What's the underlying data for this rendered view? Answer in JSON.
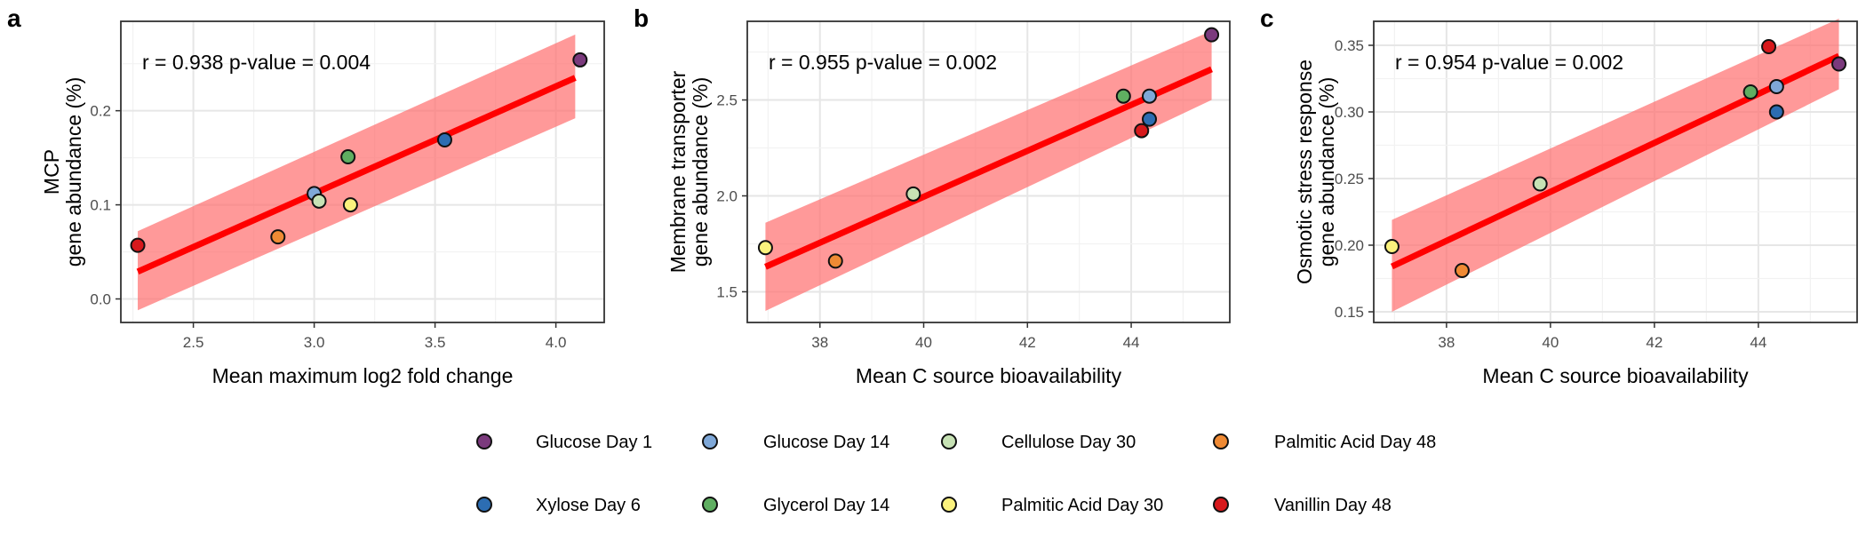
{
  "colors": {
    "fit_line": "#ff0000",
    "ribbon": "#ff6e6e",
    "grid_major": "#e6e6e6",
    "grid_minor": "#f2f2f2",
    "Glucose Day 1": "#7b3a7d",
    "Glucose Day 14": "#7fa8d8",
    "Cellulose Day 30": "#c7e2b5",
    "Palmitic Acid Day 48": "#ef8a34",
    "Xylose Day 6": "#2c6db2",
    "Glycerol Day 14": "#5fae61",
    "Palmitic Acid Day 30": "#fbf27d",
    "Vanillin Day 48": "#d7191c"
  },
  "legend": {
    "placement": "bottom",
    "entries": [
      "Glucose Day 1",
      "Glucose Day 14",
      "Cellulose Day 30",
      "Palmitic Acid Day 48",
      "Xylose Day 6",
      "Glycerol Day 14",
      "Palmitic Acid Day 30",
      "Vanillin Day 48"
    ]
  },
  "chart_data": [
    {
      "panel_label": "a",
      "type": "scatter",
      "xlabel": "Mean maximum log2 fold change",
      "ylabel": [
        "MCP",
        "gene abundance (%)"
      ],
      "annotation": "r = 0.938  p-value = 0.004",
      "xlim": [
        2.2,
        4.2
      ],
      "ylim": [
        -0.025,
        0.295
      ],
      "xticks": [
        2.5,
        3.0,
        3.5,
        4.0
      ],
      "xtick_labels": [
        "2.5",
        "3.0",
        "3.5",
        "4.0"
      ],
      "yticks": [
        0.0,
        0.1,
        0.2
      ],
      "ytick_labels": [
        "0.0",
        "0.1",
        "0.2"
      ],
      "grid": true,
      "fit": {
        "x": [
          2.27,
          4.08
        ],
        "y": [
          0.029,
          0.235
        ],
        "ci_lower": [
          -0.012,
          0.192
        ],
        "ci_upper": [
          0.072,
          0.281
        ]
      },
      "points": [
        {
          "group": "Vanillin Day 48",
          "x": 2.27,
          "y": 0.057
        },
        {
          "group": "Palmitic Acid Day 48",
          "x": 2.85,
          "y": 0.066
        },
        {
          "group": "Glucose Day 14",
          "x": 3.0,
          "y": 0.112
        },
        {
          "group": "Cellulose Day 30",
          "x": 3.02,
          "y": 0.104
        },
        {
          "group": "Palmitic Acid Day 30",
          "x": 3.15,
          "y": 0.1
        },
        {
          "group": "Glycerol Day 14",
          "x": 3.14,
          "y": 0.151
        },
        {
          "group": "Xylose Day 6",
          "x": 3.54,
          "y": 0.169
        },
        {
          "group": "Glucose Day 1",
          "x": 4.1,
          "y": 0.254
        }
      ]
    },
    {
      "panel_label": "b",
      "type": "scatter",
      "xlabel": "Mean C source bioavailability",
      "ylabel": [
        "Membrane transporter",
        "gene abundance (%)"
      ],
      "annotation": "r = 0.955  p-value = 0.002",
      "xlim": [
        36.6,
        45.9
      ],
      "ylim": [
        1.34,
        2.91
      ],
      "xticks": [
        38,
        40,
        42,
        44
      ],
      "xtick_labels": [
        "38",
        "40",
        "42",
        "44"
      ],
      "yticks": [
        1.5,
        2.0,
        2.5
      ],
      "ytick_labels": [
        "1.5",
        "2.0",
        "2.5"
      ],
      "grid": true,
      "fit": {
        "x": [
          36.95,
          45.55
        ],
        "y": [
          1.63,
          2.66
        ],
        "ci_lower": [
          1.4,
          2.5
        ],
        "ci_upper": [
          1.86,
          2.86
        ]
      },
      "points": [
        {
          "group": "Palmitic Acid Day 30",
          "x": 36.95,
          "y": 1.73
        },
        {
          "group": "Palmitic Acid Day 48",
          "x": 38.3,
          "y": 1.66
        },
        {
          "group": "Cellulose Day 30",
          "x": 39.8,
          "y": 2.01
        },
        {
          "group": "Glycerol Day 14",
          "x": 43.85,
          "y": 2.52
        },
        {
          "group": "Glucose Day 14",
          "x": 44.35,
          "y": 2.52
        },
        {
          "group": "Xylose Day 6",
          "x": 44.35,
          "y": 2.4
        },
        {
          "group": "Vanillin Day 48",
          "x": 44.2,
          "y": 2.34
        },
        {
          "group": "Glucose Day 1",
          "x": 45.55,
          "y": 2.84
        }
      ]
    },
    {
      "panel_label": "c",
      "type": "scatter",
      "xlabel": "Mean C source bioavailability",
      "ylabel": [
        "Osmotic stress response",
        "gene abundance (%)"
      ],
      "annotation": "r = 0.954  p-value = 0.002",
      "xlim": [
        36.6,
        45.9
      ],
      "ylim": [
        0.142,
        0.368
      ],
      "xticks": [
        38,
        40,
        42,
        44
      ],
      "xtick_labels": [
        "38",
        "40",
        "42",
        "44"
      ],
      "yticks": [
        0.15,
        0.2,
        0.25,
        0.3,
        0.35
      ],
      "ytick_labels": [
        "0.15",
        "0.20",
        "0.25",
        "0.30",
        "0.35"
      ],
      "grid": true,
      "fit": {
        "x": [
          36.95,
          45.55
        ],
        "y": [
          0.184,
          0.342
        ],
        "ci_lower": [
          0.15,
          0.317
        ],
        "ci_upper": [
          0.219,
          0.37
        ]
      },
      "points": [
        {
          "group": "Palmitic Acid Day 30",
          "x": 36.95,
          "y": 0.199
        },
        {
          "group": "Palmitic Acid Day 48",
          "x": 38.3,
          "y": 0.181
        },
        {
          "group": "Cellulose Day 30",
          "x": 39.8,
          "y": 0.246
        },
        {
          "group": "Glycerol Day 14",
          "x": 43.85,
          "y": 0.315
        },
        {
          "group": "Glucose Day 14",
          "x": 44.35,
          "y": 0.319
        },
        {
          "group": "Xylose Day 6",
          "x": 44.35,
          "y": 0.3
        },
        {
          "group": "Vanillin Day 48",
          "x": 44.2,
          "y": 0.349
        },
        {
          "group": "Glucose Day 1",
          "x": 45.55,
          "y": 0.336
        }
      ]
    }
  ]
}
